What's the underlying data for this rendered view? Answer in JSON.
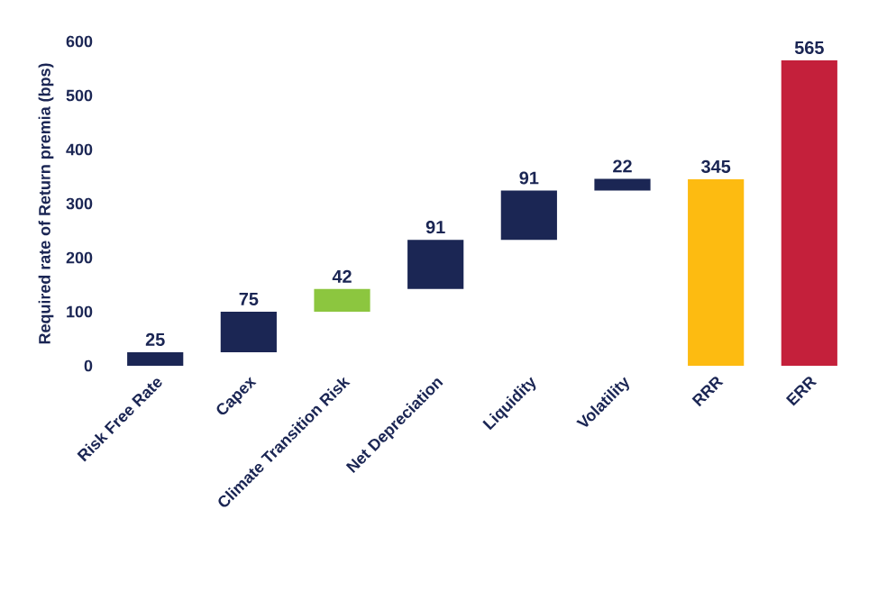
{
  "chart_data": {
    "type": "bar",
    "ylabel": "Required rate of Return premia (bps)",
    "categories": [
      "Risk Free Rate",
      "Capex",
      "Climate Transition Risk",
      "Net Depreciation",
      "Liquidity",
      "Volatility",
      "RRR",
      "ERR"
    ],
    "values": [
      25,
      75,
      42,
      91,
      91,
      22,
      345,
      565
    ],
    "base": [
      0,
      25,
      100,
      142,
      233,
      324,
      0,
      0
    ],
    "colors": [
      "#1b2654",
      "#1b2654",
      "#8cc63f",
      "#1b2654",
      "#1b2654",
      "#1b2654",
      "#fdbb11",
      "#c4203b"
    ],
    "ylim": [
      0,
      600
    ],
    "yticks": [
      0,
      100,
      200,
      300,
      400,
      500,
      600
    ],
    "data_labels": true,
    "grid": false
  }
}
